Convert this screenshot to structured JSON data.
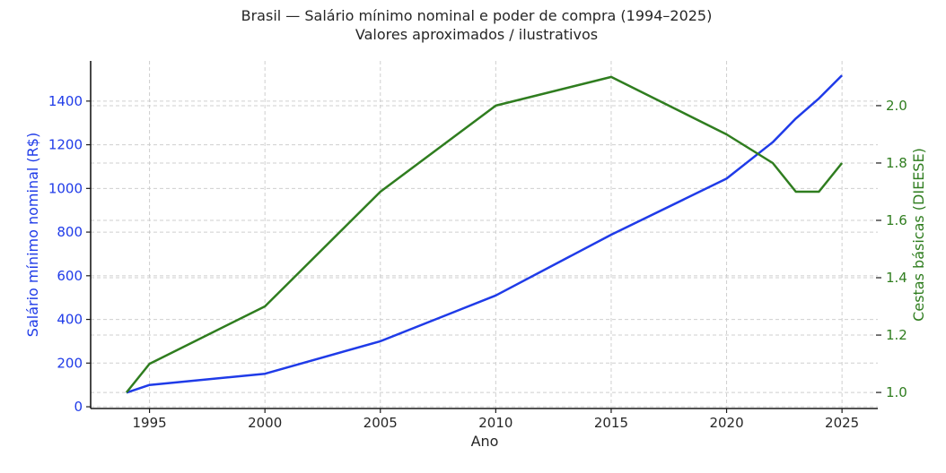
{
  "chart_data": {
    "type": "line",
    "title": "Brasil — Salário mínimo nominal e poder de compra (1994–2025)",
    "subtitle": "Valores aproximados / ilustrativos",
    "xlabel": "Ano",
    "ylabel": "Salário mínimo nominal (R$)",
    "ylabel_right": "Cestas básicas (DIEESE)",
    "xlim": [
      1992.45,
      2026.55
    ],
    "ylim": [
      -8,
      1584
    ],
    "ylim_right": [
      0.944,
      2.156
    ],
    "grid": true,
    "legend": null,
    "x_ticks": [
      1995,
      2000,
      2005,
      2010,
      2015,
      2020,
      2025
    ],
    "y_ticks": [
      0,
      200,
      400,
      600,
      800,
      1000,
      1200,
      1400
    ],
    "y_ticks_right": [
      1.0,
      1.2,
      1.4,
      1.6,
      1.8,
      2.0
    ],
    "y_tick_labels_right": [
      "1.0",
      "1.2",
      "1.4",
      "1.6",
      "1.8",
      "2.0"
    ],
    "x": [
      1994,
      1995,
      2000,
      2005,
      2010,
      2015,
      2020,
      2022,
      2023,
      2024,
      2025
    ],
    "series": [
      {
        "name": "Salário mínimo nominal (R$)",
        "axis": "left",
        "color": "#1f3be8",
        "values": [
          64.79,
          100,
          151,
          300,
          510,
          788,
          1045,
          1212,
          1320,
          1412,
          1518
        ]
      },
      {
        "name": "Cestas básicas (DIEESE)",
        "axis": "right",
        "color": "#2f7d1f",
        "values": [
          1.0,
          1.1,
          1.3,
          1.7,
          2.0,
          2.1,
          1.9,
          1.8,
          1.7,
          1.7,
          1.8
        ]
      }
    ]
  },
  "colors": {
    "left_axis": "#1f3be8",
    "right_axis": "#2f7d1f",
    "text": "#262626"
  }
}
